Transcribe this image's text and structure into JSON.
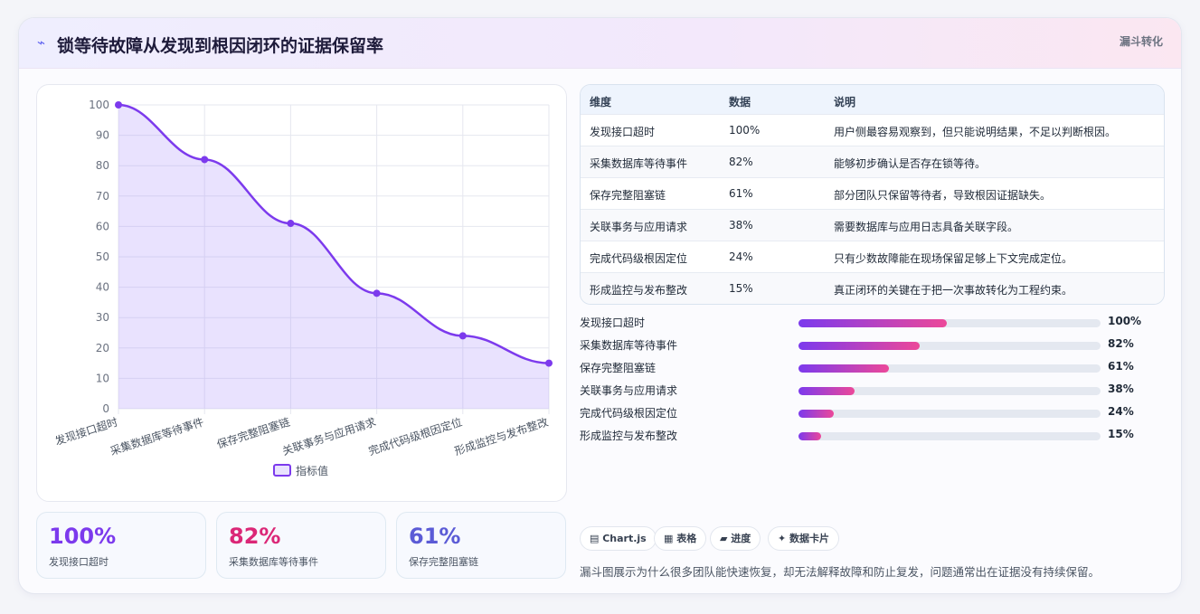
{
  "header": {
    "icon": "⌁",
    "title": "锁等待故障从发现到根因闭环的证据保留率",
    "tag": "漏斗转化"
  },
  "colors": {
    "line": "#7c3aed",
    "area": "rgba(167,139,250,0.25)",
    "stat1": "#7c3aed",
    "stat2": "#db2777",
    "stat3": "#5b5bd6"
  },
  "chart_data": {
    "type": "area",
    "categories": [
      "发现接口超时",
      "采集数据库等待事件",
      "保存完整阻塞链",
      "关联事务与应用请求",
      "完成代码级根因定位",
      "形成监控与发布整改"
    ],
    "series": [
      {
        "name": "指标值",
        "values": [
          100,
          82,
          61,
          38,
          24,
          15
        ]
      }
    ],
    "ylim": [
      0,
      100
    ],
    "yticks": [
      0,
      10,
      20,
      30,
      40,
      50,
      60,
      70,
      80,
      90,
      100
    ],
    "grid": true,
    "legend": "bottom"
  },
  "stats": [
    {
      "value": "100%",
      "label": "发现接口超时"
    },
    {
      "value": "82%",
      "label": "采集数据库等待事件"
    },
    {
      "value": "61%",
      "label": "保存完整阻塞链"
    }
  ],
  "table": {
    "headers": [
      "维度",
      "数据",
      "说明"
    ],
    "rows": [
      [
        "发现接口超时",
        "100%",
        "用户侧最容易观察到，但只能说明结果，不足以判断根因。"
      ],
      [
        "采集数据库等待事件",
        "82%",
        "能够初步确认是否存在锁等待。"
      ],
      [
        "保存完整阻塞链",
        "61%",
        "部分团队只保留等待者，导致根因证据缺失。"
      ],
      [
        "关联事务与应用请求",
        "38%",
        "需要数据库与应用日志具备关联字段。"
      ],
      [
        "完成代码级根因定位",
        "24%",
        "只有少数故障能在现场保留足够上下文完成定位。"
      ],
      [
        "形成监控与发布整改",
        "15%",
        "真正闭环的关键在于把一次事故转化为工程约束。"
      ]
    ]
  },
  "progress": [
    {
      "label": "发现接口超时",
      "value": 100,
      "text": "100%"
    },
    {
      "label": "采集数据库等待事件",
      "value": 82,
      "text": "82%"
    },
    {
      "label": "保存完整阻塞链",
      "value": 61,
      "text": "61%"
    },
    {
      "label": "关联事务与应用请求",
      "value": 38,
      "text": "38%"
    },
    {
      "label": "完成代码级根因定位",
      "value": 24,
      "text": "24%"
    },
    {
      "label": "形成监控与发布整改",
      "value": 15,
      "text": "15%"
    }
  ],
  "chips": [
    "▤ Chart.js",
    "▦ 表格",
    "▰ 进度",
    "✦ 数据卡片"
  ],
  "footer": "漏斗图展示为什么很多团队能快速恢复，却无法解释故障和防止复发，问题通常出在证据没有持续保留。"
}
